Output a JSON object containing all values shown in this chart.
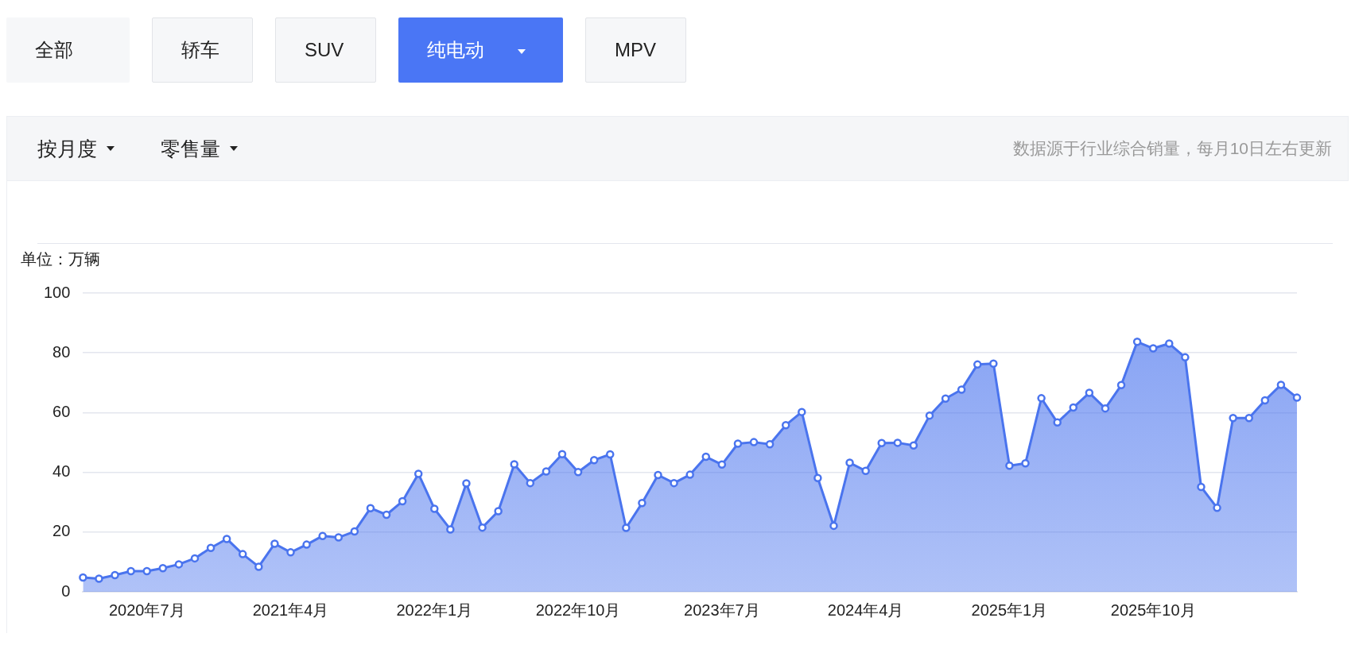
{
  "chart_data": {
    "type": "area",
    "annotations": [
      "全部",
      "轿车",
      "SUV",
      "纯电动",
      "MPV",
      "按月度",
      "零售量",
      "数据源于行业综合销量，每月10日左右更新"
    ],
    "ylabel": "单位：万辆",
    "categories": [
      null,
      null,
      null,
      null,
      "2020年7月",
      null,
      null,
      null,
      null,
      null,
      null,
      null,
      null,
      "2021年4月",
      null,
      null,
      null,
      null,
      null,
      null,
      null,
      null,
      "2022年1月",
      null,
      null,
      null,
      null,
      null,
      null,
      null,
      null,
      "2022年10月",
      null,
      null,
      null,
      null,
      null,
      null,
      null,
      null,
      "2023年7月",
      null,
      null,
      null,
      null,
      null,
      null,
      null,
      null,
      "2024年4月",
      null,
      null,
      null,
      null,
      null,
      null,
      null,
      null,
      "2025年1月",
      null,
      null,
      null,
      null,
      null,
      null,
      null,
      null,
      "2025年10月",
      null,
      null,
      null,
      null,
      null,
      null,
      null,
      null,
      null
    ],
    "series": [
      {
        "color": "#4a74ee",
        "values": [
          4.8,
          4.4,
          5.6,
          6.9,
          6.9,
          7.9,
          9.2,
          11.2,
          14.7,
          17.7,
          12.6,
          8.4,
          16.1,
          13.2,
          15.8,
          18.7,
          18.2,
          20.2,
          28.0,
          25.8,
          30.3,
          39.5,
          27.8,
          20.9,
          36.3,
          21.5,
          27.0,
          42.7,
          36.4,
          40.3,
          46.1,
          40.1,
          44.1,
          46.0,
          21.4,
          29.7,
          39.1,
          36.4,
          39.2,
          45.2,
          42.6,
          49.6,
          50.1,
          49.4,
          55.8,
          60.2,
          38.1,
          22.1,
          43.2,
          40.5,
          49.8,
          49.9,
          49.0,
          59.0,
          64.7,
          67.7,
          76.1,
          76.4,
          42.2,
          43.0,
          64.8,
          56.7,
          61.7,
          66.6,
          61.4,
          69.2,
          83.7,
          81.5,
          83.1,
          78.5,
          35.1,
          28.1,
          58.2,
          58.2,
          64.1,
          69.3,
          65.0
        ]
      }
    ],
    "ylim": [
      0,
      100
    ],
    "yticks": [
      0,
      20,
      40,
      60,
      80,
      100
    ],
    "grid": "y",
    "legend": false,
    "marker": "circle"
  }
}
